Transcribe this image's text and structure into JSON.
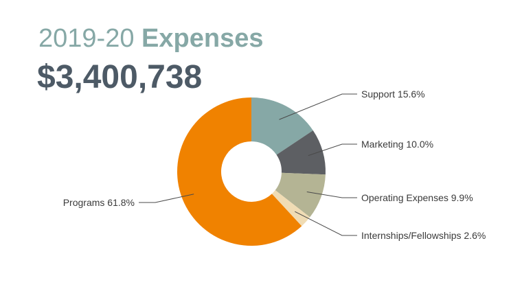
{
  "header": {
    "title_year": "2019-20",
    "title_word": "Expenses",
    "total": "$3,400,738"
  },
  "chart_data": {
    "type": "pie",
    "donut": true,
    "title": "2019-20 Expenses",
    "subtitle": "$3,400,738",
    "legend": "none",
    "slices": [
      {
        "label": "Support",
        "value": 15.6,
        "text": "Support 15.6%",
        "color": "#86a8a6"
      },
      {
        "label": "Marketing",
        "value": 10.0,
        "text": "Marketing 10.0%",
        "color": "#5d5f63"
      },
      {
        "label": "Operating Expenses",
        "value": 9.9,
        "text": "Operating Expenses 9.9%",
        "color": "#b4b494"
      },
      {
        "label": "Internships/Fellowships",
        "value": 2.6,
        "text": "Internships/Fellowships 2.6%",
        "color": "#f0dcb4"
      },
      {
        "label": "Programs",
        "value": 61.8,
        "text": "Programs 61.8%",
        "color": "#f08200"
      }
    ]
  }
}
